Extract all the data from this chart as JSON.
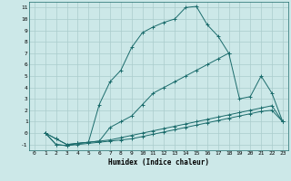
{
  "background_color": "#cce8e8",
  "grid_color": "#aacccc",
  "line_color": "#1a6b6b",
  "xlabel": "Humidex (Indice chaleur)",
  "xlim": [
    -0.5,
    23.5
  ],
  "ylim": [
    -1.5,
    11.5
  ],
  "xticks": [
    0,
    1,
    2,
    3,
    4,
    5,
    6,
    7,
    8,
    9,
    10,
    11,
    12,
    13,
    14,
    15,
    16,
    17,
    18,
    19,
    20,
    21,
    22,
    23
  ],
  "yticks": [
    -1,
    0,
    1,
    2,
    3,
    4,
    5,
    6,
    7,
    8,
    9,
    10,
    11
  ],
  "series": [
    {
      "x": [
        1,
        2,
        3,
        4,
        5,
        6,
        7,
        8,
        9,
        10,
        11,
        12,
        13,
        14,
        15,
        16,
        17,
        18
      ],
      "y": [
        0,
        -0.5,
        -1.0,
        -0.9,
        -0.8,
        2.5,
        4.5,
        5.5,
        7.5,
        8.8,
        9.3,
        9.7,
        10.0,
        11.0,
        11.1,
        9.5,
        8.5,
        7.0
      ]
    },
    {
      "x": [
        1,
        2,
        3,
        4,
        5,
        6,
        7,
        8,
        9,
        10,
        11,
        12,
        13,
        14,
        15,
        16,
        17,
        18,
        19,
        20,
        21,
        22,
        23
      ],
      "y": [
        0,
        -0.5,
        -1.0,
        -0.9,
        -0.8,
        -0.7,
        0.5,
        1.0,
        1.5,
        2.5,
        3.5,
        4.0,
        4.5,
        5.0,
        5.5,
        6.0,
        6.5,
        7.0,
        3.0,
        3.2,
        5.0,
        3.5,
        1.0
      ]
    },
    {
      "x": [
        1,
        2,
        3,
        4,
        5,
        6,
        7,
        8,
        9,
        10,
        11,
        12,
        13,
        14,
        15,
        16,
        17,
        18,
        19,
        20,
        21,
        22,
        23
      ],
      "y": [
        0,
        -1.0,
        -1.1,
        -0.9,
        -0.8,
        -0.7,
        -0.6,
        -0.4,
        -0.2,
        0.0,
        0.2,
        0.4,
        0.6,
        0.8,
        1.0,
        1.2,
        1.4,
        1.6,
        1.8,
        2.0,
        2.2,
        2.4,
        1.0
      ]
    },
    {
      "x": [
        1,
        2,
        3,
        4,
        5,
        6,
        7,
        8,
        9,
        10,
        11,
        12,
        13,
        14,
        15,
        16,
        17,
        18,
        19,
        20,
        21,
        22,
        23
      ],
      "y": [
        0,
        -1.0,
        -1.1,
        -1.0,
        -0.9,
        -0.8,
        -0.7,
        -0.6,
        -0.5,
        -0.3,
        -0.1,
        0.1,
        0.3,
        0.5,
        0.7,
        0.9,
        1.1,
        1.3,
        1.5,
        1.7,
        1.9,
        2.0,
        1.0
      ]
    }
  ]
}
